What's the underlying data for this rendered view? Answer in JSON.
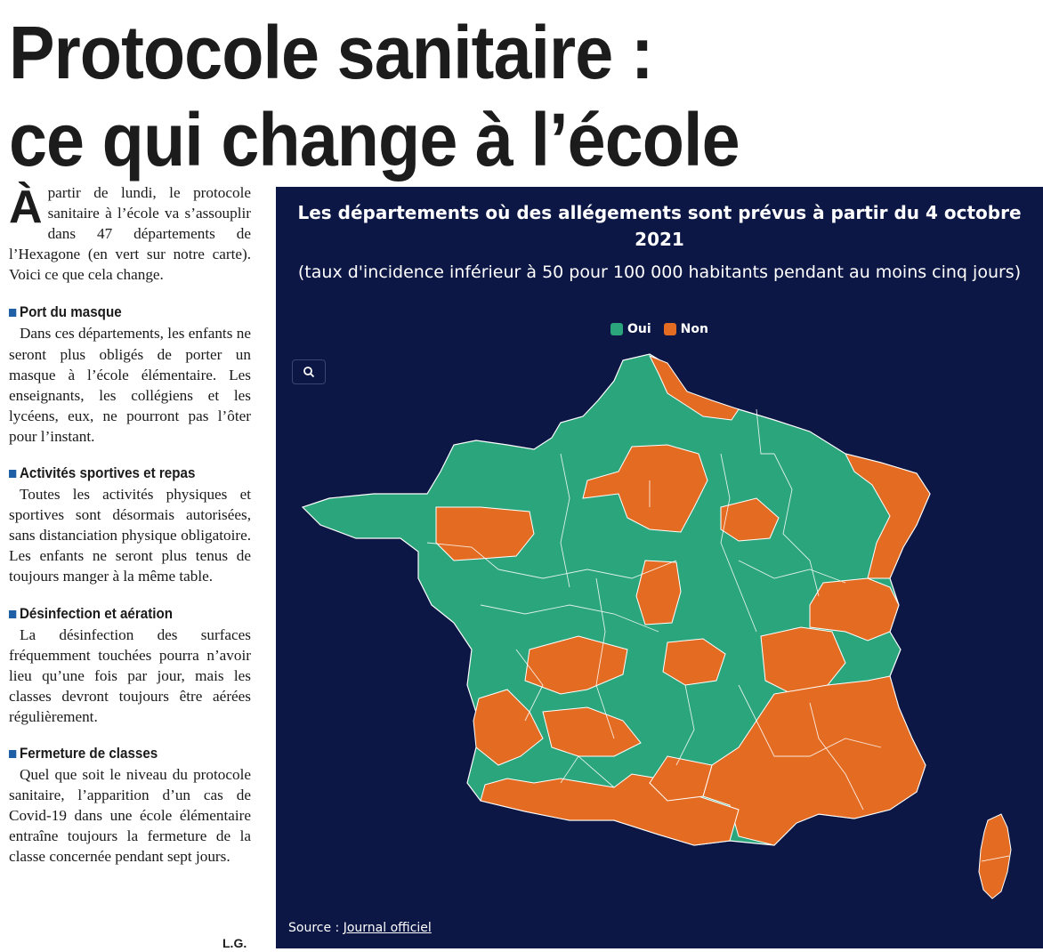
{
  "headline": {
    "line1": "Protocole sanitaire :",
    "line2": "ce qui change à l’école"
  },
  "article": {
    "dropcap": "À",
    "lead": "partir de lundi, le protocole sanitaire à l’école va s’assouplir dans 47 départements de l’Hexagone (en vert sur notre carte). Voici ce que cela change.",
    "sections": [
      {
        "title": "Port du masque",
        "body": "Dans ces départements, les enfants ne seront plus obligés de porter un masque à l’école élémentaire. Les enseignants, les collégiens et les lycéens, eux, ne pourront pas l’ôter pour l’instant."
      },
      {
        "title": "Activités sportives et repas",
        "body": "Toutes les activités physiques et sportives sont désormais autorisées, sans distanciation physique obligatoire. Les enfants ne seront plus tenus de toujours manger à la même table."
      },
      {
        "title": "Désinfection et aération",
        "body": "La désinfection des surfaces fréquemment touchées pourra n’avoir lieu qu’une fois par jour, mais les classes devront toujours être aérées régulièrement."
      },
      {
        "title": "Fermeture de classes",
        "body": "Quel que soit le niveau du protocole sanitaire, l’apparition d’un cas de Covid-19 dans une école élémentaire entraîne toujours la fermeture de la classe concernée pendant sept jours."
      }
    ],
    "signature": "L.G."
  },
  "map": {
    "title": "Les départements où des allégements sont prévus à partir du 4 octobre 2021",
    "subtitle": "(taux d'incidence inférieur à 50 pour 100 000 habitants pendant au moins cinq jours)",
    "legend": {
      "oui": "Oui",
      "non": "Non"
    },
    "source_label": "Source :",
    "source_link": "Journal officiel",
    "colors": {
      "background": "#0c1745",
      "oui": "#2aa57c",
      "non": "#e46c22",
      "border": "#ffffff"
    },
    "zoom_icon": "search-icon"
  }
}
